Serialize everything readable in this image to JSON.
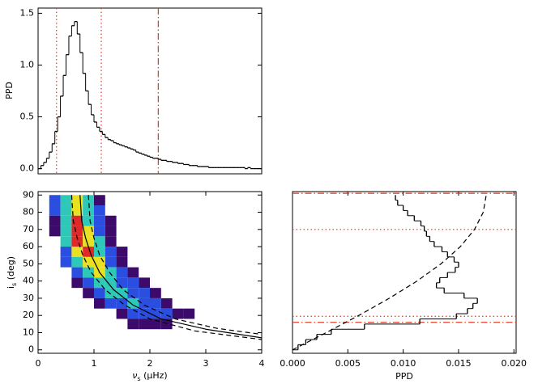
{
  "chart_data": [
    {
      "type": "histogram",
      "orientation": "vertical",
      "ylabel": "PPD",
      "bins": [
        0,
        0.05,
        0.1,
        0.15,
        0.2,
        0.25,
        0.3,
        0.35,
        0.4,
        0.45,
        0.5,
        0.55,
        0.6,
        0.65,
        0.7,
        0.75,
        0.8,
        0.85,
        0.9,
        0.95,
        1,
        1.05,
        1.1,
        1.15,
        1.2,
        1.25,
        1.3,
        1.35,
        1.4,
        1.45,
        1.5,
        1.55,
        1.6,
        1.65,
        1.7,
        1.75,
        1.8,
        1.85,
        1.9,
        1.95,
        2,
        2.05,
        2.1,
        2.15,
        2.2,
        2.25,
        2.3,
        2.35,
        2.4,
        2.45,
        2.5,
        2.55,
        2.6,
        2.65,
        2.7,
        2.75,
        2.8,
        2.85,
        2.9,
        2.95,
        3,
        3.05,
        3.1,
        3.15,
        3.2,
        3.25,
        3.3,
        3.35,
        3.4,
        3.45,
        3.5,
        3.55,
        3.6,
        3.65,
        3.7,
        3.75,
        3.8,
        3.85,
        3.9,
        3.95,
        4
      ],
      "values": [
        0,
        0.03,
        0.06,
        0.1,
        0.16,
        0.24,
        0.36,
        0.5,
        0.7,
        0.9,
        1.1,
        1.28,
        1.38,
        1.42,
        1.3,
        1.12,
        0.92,
        0.75,
        0.62,
        0.52,
        0.45,
        0.4,
        0.36,
        0.33,
        0.3,
        0.28,
        0.27,
        0.25,
        0.24,
        0.23,
        0.22,
        0.21,
        0.2,
        0.19,
        0.18,
        0.16,
        0.15,
        0.14,
        0.13,
        0.12,
        0.11,
        0.1,
        0.1,
        0.09,
        0.08,
        0.08,
        0.07,
        0.07,
        0.06,
        0.06,
        0.05,
        0.05,
        0.04,
        0.04,
        0.03,
        0.03,
        0.03,
        0.02,
        0.02,
        0.02,
        0.02,
        0.01,
        0.01,
        0.01,
        0.01,
        0.01,
        0.01,
        0.01,
        0.01,
        0.01,
        0.01,
        0.01,
        0.01,
        0.01,
        0,
        0.01,
        0,
        0,
        0,
        0
      ],
      "xlim": [
        0,
        4
      ],
      "ylim": [
        -0.05,
        1.55
      ],
      "yticks": [
        {
          "value": 0,
          "label": "0.0"
        },
        0.5,
        {
          "value": 1,
          "label": "1.0"
        },
        1.5
      ],
      "color": "#000000",
      "ref_color": "#e8341c",
      "ref_lines": [
        {
          "value": 0.33,
          "style": "dotted"
        },
        {
          "value": 1.13,
          "style": "dotted"
        },
        {
          "value": 2.15,
          "style": "dashdot"
        }
      ]
    },
    {
      "type": "heatmap",
      "ylabel": {
        "main": "i",
        "sub": "s",
        "rest": " (deg)"
      },
      "xlabel": {
        "main": "ν",
        "sub": "s",
        "rest": " (μHz)"
      },
      "x": [
        0.3,
        0.5,
        0.7,
        0.9,
        1.1,
        0.3,
        0.5,
        0.7,
        0.9,
        1.1,
        0.3,
        0.5,
        0.7,
        0.9,
        1.1,
        1.3,
        0.3,
        0.5,
        0.7,
        0.9,
        1.1,
        1.3,
        0.5,
        0.7,
        0.9,
        1.1,
        1.3,
        0.5,
        0.7,
        0.9,
        1.1,
        1.3,
        1.5,
        0.5,
        0.7,
        0.9,
        1.1,
        1.3,
        1.5,
        0.7,
        0.9,
        1.1,
        1.3,
        1.5,
        1.7,
        0.7,
        0.9,
        1.1,
        1.3,
        1.5,
        1.7,
        1.9,
        0.9,
        1.1,
        1.3,
        1.5,
        1.7,
        1.9,
        2.1,
        1.1,
        1.3,
        1.5,
        1.7,
        1.9,
        2.1,
        2.3,
        1.5,
        1.7,
        1.9,
        2.1,
        2.3,
        2.5,
        2.7,
        1.7,
        1.9,
        2.1,
        2.3
      ],
      "y": [
        87,
        87,
        87,
        87,
        87,
        81,
        81,
        81,
        81,
        81,
        75,
        75,
        75,
        75,
        75,
        75,
        69,
        69,
        69,
        69,
        69,
        69,
        63,
        63,
        63,
        63,
        63,
        57,
        57,
        57,
        57,
        57,
        57,
        51,
        51,
        51,
        51,
        51,
        51,
        45,
        45,
        45,
        45,
        45,
        45,
        39,
        39,
        39,
        39,
        39,
        39,
        39,
        33,
        33,
        33,
        33,
        33,
        33,
        33,
        27,
        27,
        27,
        27,
        27,
        27,
        27,
        21,
        21,
        21,
        21,
        21,
        21,
        21,
        15,
        15,
        15,
        15
      ],
      "values": [
        2,
        3,
        4,
        3,
        1,
        2,
        3,
        4,
        3,
        2,
        1,
        3,
        5,
        3,
        2,
        1,
        1,
        3,
        5,
        4,
        2,
        1,
        3,
        5,
        4,
        3,
        1,
        2,
        4,
        5,
        3,
        2,
        1,
        2,
        3,
        4,
        4,
        2,
        1,
        2,
        3,
        4,
        3,
        2,
        1,
        1,
        2,
        3,
        3,
        2,
        2,
        1,
        1,
        2,
        3,
        3,
        2,
        2,
        1,
        1,
        2,
        2,
        3,
        2,
        2,
        1,
        1,
        2,
        2,
        2,
        2,
        1,
        1,
        1,
        1,
        1,
        1
      ],
      "colors": [
        "#3b0a6a",
        "#2a4fe0",
        "#2ec8b8",
        "#e8e020",
        "#e02828"
      ],
      "xlim": [
        0,
        4
      ],
      "ylim": [
        -2,
        92
      ],
      "xticks": [
        0,
        1,
        2,
        3,
        4
      ],
      "yticks": [
        0,
        10,
        20,
        30,
        40,
        50,
        60,
        70,
        80,
        90
      ],
      "curves": [
        {
          "style": "solid",
          "x": [
            0.75,
            0.78,
            0.85,
            0.95,
            1.1,
            1.35,
            1.7,
            2.2,
            3,
            4
          ],
          "y": [
            90,
            75,
            65,
            55,
            45,
            35,
            26,
            18,
            12,
            7
          ]
        },
        {
          "style": "dashed",
          "x": [
            0.6,
            0.63,
            0.7,
            0.8,
            0.95,
            1.2,
            1.55,
            2,
            2.8,
            4
          ],
          "y": [
            90,
            75,
            65,
            55,
            45,
            35,
            26,
            18,
            11,
            6
          ]
        },
        {
          "style": "dashed",
          "x": [
            0.9,
            0.93,
            1,
            1.1,
            1.28,
            1.52,
            1.9,
            2.45,
            3.2,
            4
          ],
          "y": [
            90,
            75,
            65,
            55,
            45,
            35,
            26,
            18,
            12.5,
            9
          ]
        }
      ]
    },
    {
      "type": "histogram",
      "orientation": "horizontal",
      "xlabel": "PPD",
      "bins": [
        0,
        3,
        6,
        9,
        12,
        15,
        18,
        21,
        24,
        27,
        30,
        33,
        36,
        39,
        42,
        45,
        48,
        51,
        54,
        57,
        60,
        63,
        66,
        69,
        72,
        75,
        78,
        81,
        84,
        87,
        90
      ],
      "values": [
        0.0005,
        0.0012,
        0.0022,
        0.0035,
        0.0065,
        0.0115,
        0.0148,
        0.0158,
        0.0163,
        0.0167,
        0.0155,
        0.0137,
        0.013,
        0.0133,
        0.014,
        0.0147,
        0.015,
        0.0146,
        0.014,
        0.0135,
        0.0128,
        0.0124,
        0.0121,
        0.0119,
        0.0116,
        0.011,
        0.0104,
        0.01,
        0.0095,
        0.0093
      ],
      "xlim": [
        0,
        0.0202
      ],
      "ylim": [
        -2,
        92
      ],
      "xticks": [
        {
          "value": 0,
          "label": "0.000"
        },
        {
          "value": 0.005,
          "label": "0.005"
        },
        {
          "value": 0.01,
          "label": "0.010"
        },
        {
          "value": 0.015,
          "label": "0.015"
        },
        {
          "value": 0.02,
          "label": "0.020"
        }
      ],
      "color": "#000000",
      "ref_color": "#e8341c",
      "ref_lines": [
        {
          "value": 19.5,
          "style": "dotted"
        },
        {
          "value": 70,
          "style": "dotted"
        },
        {
          "value": 16,
          "style": "dashdot"
        },
        {
          "value": 91,
          "style": "dashdot"
        }
      ],
      "curves": [
        {
          "style": "dashed",
          "x": [
            0,
            0.00304,
            0.00599,
            0.00875,
            0.01125,
            0.01341,
            0.01516,
            0.01644,
            0.01723,
            0.0175
          ],
          "y": [
            0,
            10,
            20,
            30,
            40,
            50,
            60,
            70,
            80,
            90
          ]
        }
      ]
    }
  ]
}
